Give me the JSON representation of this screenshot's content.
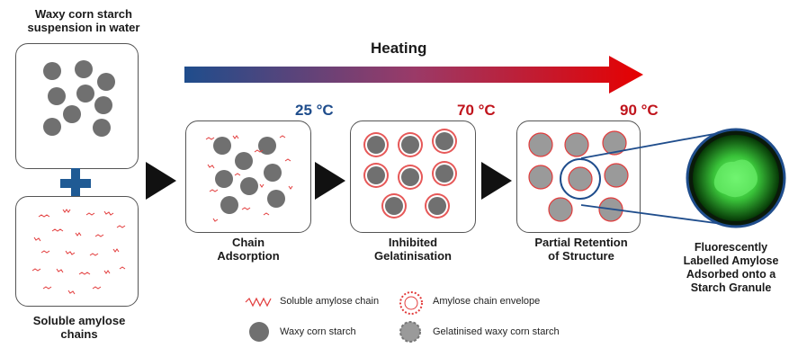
{
  "colors": {
    "heating_start": "#1f4d8c",
    "heating_end": "#e60000",
    "plus": "#1f5a94",
    "granule": "#707070",
    "chain": "#e23b3b",
    "temp_cool": "#1f4d8c",
    "temp_hot": "#c0141c",
    "fluorescent": "#39d14a"
  },
  "left": {
    "top_label_line1": "Waxy corn starch",
    "top_label_line2": "suspension in water",
    "bottom_label_line1": "Soluble amylose",
    "bottom_label_line2": "chains"
  },
  "heating": {
    "label": "Heating"
  },
  "temperatures": {
    "t1": "25 °C",
    "t2": "70 °C",
    "t3": "90 °C"
  },
  "stages": {
    "s1_line1": "Chain",
    "s1_line2": "Adsorption",
    "s2_line1": "Inhibited",
    "s2_line2": "Gelatinisation",
    "s3_line1": "Partial Retention",
    "s3_line2": "of Structure"
  },
  "fluorescent": {
    "line1": "Fluorescently",
    "line2": "Labelled Amylose",
    "line3": "Adsorbed onto a",
    "line4": "Starch Granule"
  },
  "legend": {
    "soluble_chain": "Soluble amylose chain",
    "chain_envelope": "Amylose chain envelope",
    "waxy_starch": "Waxy corn starch",
    "gelatinised": "Gelatinised waxy corn starch"
  }
}
